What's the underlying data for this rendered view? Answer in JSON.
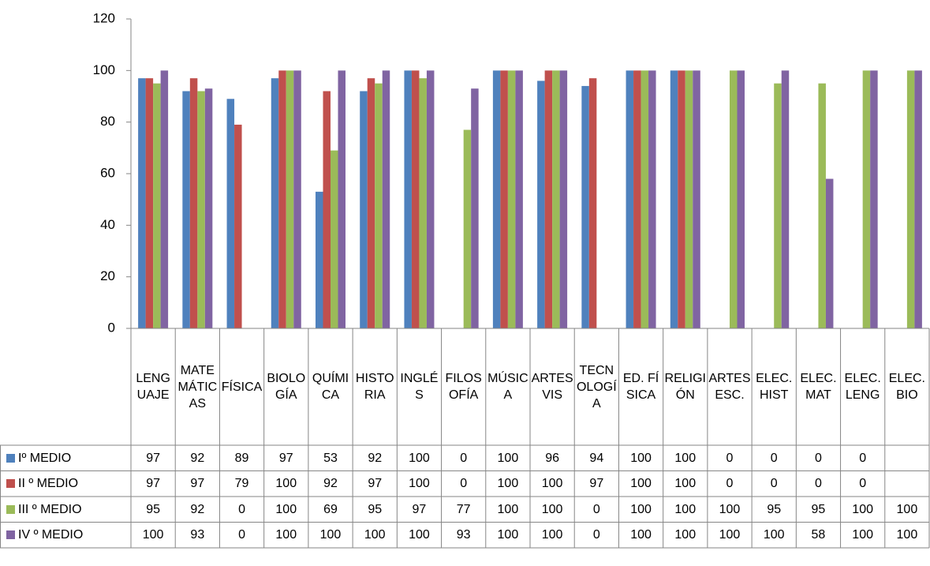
{
  "chart_data": {
    "type": "bar",
    "categories": [
      "LENGUAJE",
      "MATEMÁTICAS",
      "FÍSICA",
      "BIOLOGÍA",
      "QUÍMICA",
      "HISTORIA",
      "INGLÉS",
      "FILOSOFÍA",
      "MÚSICA",
      "ARTES VIS",
      "TECNOLOGÍA",
      "ED. FÍSICA",
      "RELIGIÓN",
      "ARTES ESC.",
      "ELEC. HIST",
      "ELEC. MAT",
      "ELEC. LENG",
      "ELEC. BIO"
    ],
    "series": [
      {
        "name": "Iº MEDIO",
        "color": "#4f81bd",
        "values": [
          97,
          92,
          89,
          97,
          53,
          92,
          100,
          0,
          100,
          96,
          94,
          100,
          100,
          0,
          0,
          0,
          0,
          null
        ]
      },
      {
        "name": "II º MEDIO",
        "color": "#c0504d",
        "values": [
          97,
          97,
          79,
          100,
          92,
          97,
          100,
          0,
          100,
          100,
          97,
          100,
          100,
          0,
          0,
          0,
          0,
          null
        ]
      },
      {
        "name": "III º MEDIO",
        "color": "#9bbb59",
        "values": [
          95,
          92,
          0,
          100,
          69,
          95,
          97,
          77,
          100,
          100,
          0,
          100,
          100,
          100,
          95,
          95,
          100,
          100
        ]
      },
      {
        "name": "IV º MEDIO",
        "color": "#8064a2",
        "values": [
          100,
          93,
          0,
          100,
          100,
          100,
          100,
          93,
          100,
          100,
          0,
          100,
          100,
          100,
          100,
          58,
          100,
          100
        ]
      }
    ],
    "ylim": [
      0,
      120
    ],
    "yticks": [
      0,
      20,
      40,
      60,
      80,
      100,
      120
    ],
    "grid": false,
    "data_table": true
  }
}
